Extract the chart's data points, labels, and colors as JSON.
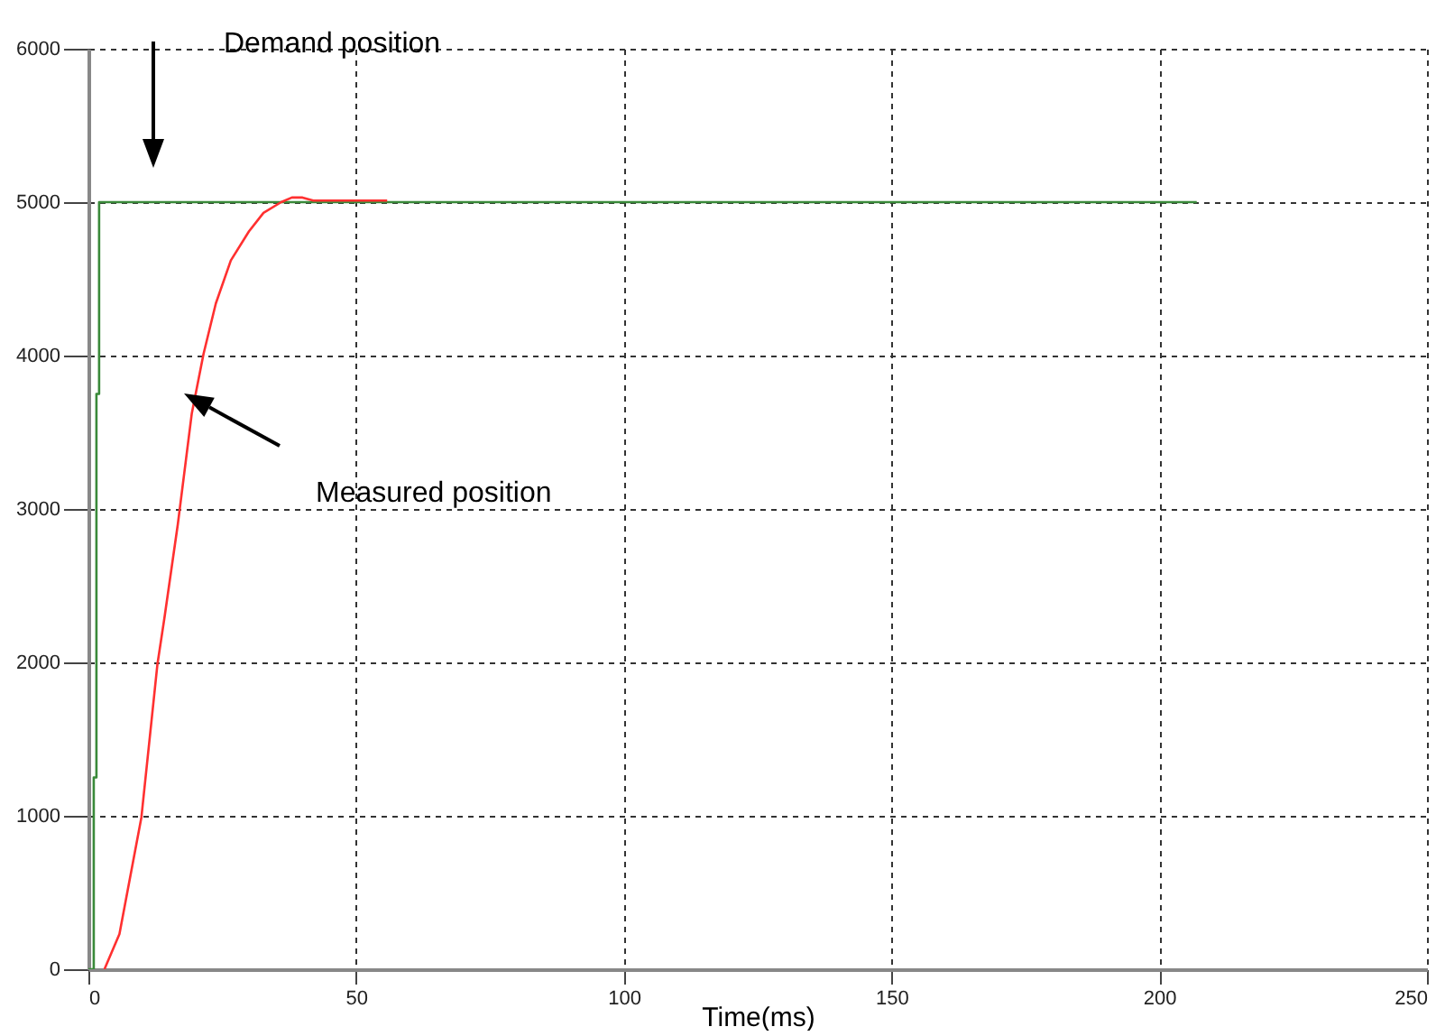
{
  "chart_data": {
    "type": "line",
    "xlabel": "Time(ms)",
    "xlim": [
      0,
      250
    ],
    "xticks": [
      0,
      50,
      100,
      150,
      200,
      250
    ],
    "ylim": [
      0,
      6000
    ],
    "yticks": [
      0,
      1000,
      2000,
      3000,
      4000,
      5000,
      6000
    ],
    "grid": true,
    "line_style": "solid",
    "series": [
      {
        "color": "#3a8a3a",
        "x": [
          0,
          1,
          1,
          1.5,
          1.5,
          2,
          2,
          207
        ],
        "values": [
          0,
          0,
          1250,
          1250,
          3750,
          3750,
          5000,
          5000
        ]
      },
      {
        "color": "#ff3030",
        "x": [
          3,
          5.8,
          9.9,
          12.9,
          14.2,
          16.7,
          19.3,
          21.5,
          23.8,
          26.6,
          30,
          32.7,
          36,
          38,
          40,
          42,
          55.8
        ],
        "values": [
          0,
          230,
          990,
          1990,
          2290,
          2900,
          3620,
          4010,
          4340,
          4620,
          4810,
          4930,
          5000,
          5030,
          5030,
          5010,
          5010
        ]
      }
    ],
    "annotations": [
      "Demand position",
      "Measured position"
    ]
  }
}
